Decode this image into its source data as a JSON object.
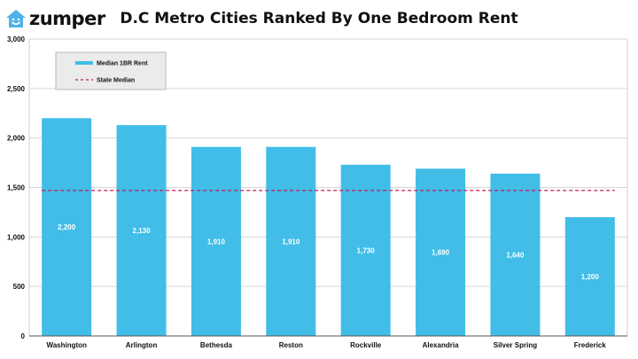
{
  "brand": {
    "name": "zumper",
    "icon": "house-icon",
    "icon_color": "#4fb3e8"
  },
  "chart_data": {
    "type": "bar",
    "title": "D.C Metro Cities Ranked By One Bedroom Rent",
    "categories": [
      "Washington",
      "Arlington",
      "Bethesda",
      "Reston",
      "Rockville",
      "Alexandria",
      "Silver Spring",
      "Frederick"
    ],
    "series": [
      {
        "name": "Median 1BR Rent",
        "values": [
          2200,
          2130,
          1910,
          1910,
          1730,
          1690,
          1640,
          1200
        ],
        "value_labels": [
          "2,200",
          "2,130",
          "1,910",
          "1,910",
          "1,730",
          "1,690",
          "1,640",
          "1,200"
        ],
        "color": "#41bde8"
      }
    ],
    "reference_line": {
      "name": "State Median",
      "value": 1470,
      "color": "#c2185b",
      "style": "dashed"
    },
    "ylim": [
      0,
      3000
    ],
    "yticks": [
      0,
      500,
      1000,
      1500,
      2000,
      2500,
      3000
    ],
    "ytick_labels": [
      "0",
      "500",
      "1,000",
      "1,500",
      "2,000",
      "2,500",
      "3,000"
    ],
    "grid": true,
    "legend_position": "top-left"
  }
}
